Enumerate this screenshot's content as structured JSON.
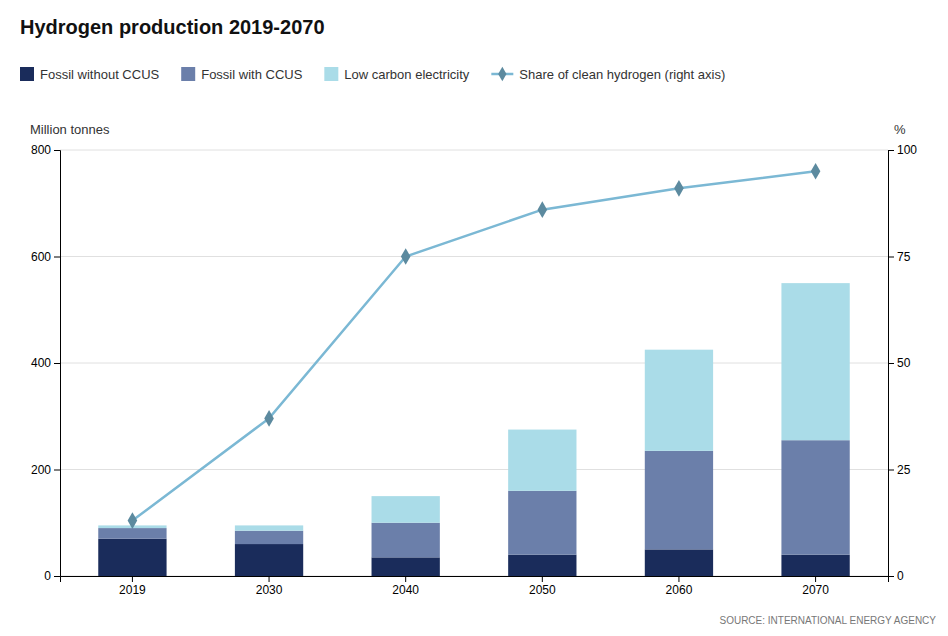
{
  "chart_data": {
    "type": "bar",
    "stacked": true,
    "title": "Hydrogen production 2019-2070",
    "y_label": "Million tonnes",
    "y2_label": "%",
    "source": "SOURCE: INTERNATIONAL ENERGY AGENCY",
    "categories": [
      "2019",
      "2030",
      "2040",
      "2050",
      "2060",
      "2070"
    ],
    "series": [
      {
        "name": "Fossil without CCUS",
        "type": "bar",
        "color": "#1a2c5b",
        "values": [
          70,
          60,
          35,
          40,
          50,
          40
        ]
      },
      {
        "name": "Fossil with CCUS",
        "type": "bar",
        "color": "#6b7faa",
        "values": [
          20,
          25,
          65,
          120,
          185,
          215
        ]
      },
      {
        "name": "Low carbon electricity",
        "type": "bar",
        "color": "#aadce8",
        "values": [
          5,
          10,
          50,
          115,
          190,
          295
        ]
      },
      {
        "name": "Share of clean hydrogen (right axis)",
        "type": "line",
        "axis": "y2",
        "color": "#7bb8d4",
        "marker": "diamond",
        "values": [
          13,
          37,
          75,
          86,
          91,
          95
        ]
      }
    ],
    "ylim": [
      0,
      800
    ],
    "yticks": [
      0,
      200,
      400,
      600,
      800
    ],
    "y2lim": [
      0,
      100
    ],
    "y2ticks": [
      0,
      25,
      50,
      75,
      100
    ],
    "grid": true,
    "legend": "top-left"
  }
}
